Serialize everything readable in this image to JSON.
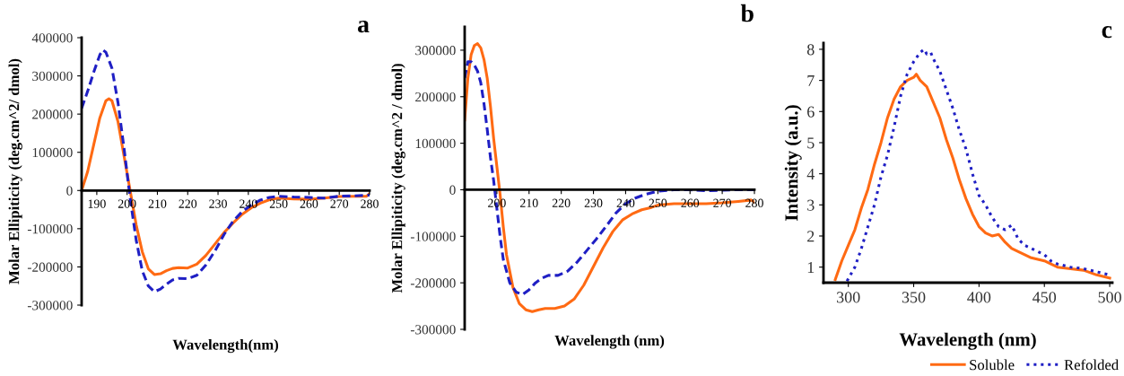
{
  "chart_data": [
    {
      "type": "line",
      "title": "a",
      "xlabel": "Wavelength(nm)",
      "ylabel": "Molar Ellipiticity (deg.cm^2/ dmol)",
      "xlim": [
        185,
        280
      ],
      "xticks": [
        190,
        200,
        210,
        220,
        230,
        240,
        250,
        260,
        270,
        280
      ],
      "ylim": [
        -300000,
        400000
      ],
      "yticks": [
        -300000,
        -200000,
        -100000,
        0,
        100000,
        200000,
        300000,
        400000
      ],
      "grid": false,
      "series": [
        {
          "color": "#ff6a13",
          "line_style": "solid",
          "x": [
            185,
            187,
            189,
            191,
            193,
            194,
            195,
            197,
            199,
            201,
            203,
            205,
            207,
            209,
            211,
            213,
            215,
            217,
            220,
            223,
            226,
            229,
            232,
            235,
            238,
            241,
            244,
            247,
            250,
            255,
            260,
            265,
            270,
            275,
            279,
            280
          ],
          "values": [
            0,
            50000,
            120000,
            190000,
            235000,
            240000,
            235000,
            180000,
            90000,
            0,
            -90000,
            -160000,
            -205000,
            -220000,
            -218000,
            -210000,
            -204000,
            -202000,
            -203000,
            -193000,
            -170000,
            -140000,
            -110000,
            -85000,
            -62000,
            -45000,
            -33000,
            -24000,
            -20000,
            -22000,
            -23000,
            -20000,
            -16000,
            -15000,
            -15000,
            -8000
          ]
        },
        {
          "color": "#1f1fc4",
          "line_style": "dashed",
          "x": [
            185,
            187,
            189,
            191,
            192,
            193,
            195,
            197,
            199,
            201,
            203,
            205,
            207,
            209,
            211,
            213,
            215,
            217,
            220,
            223,
            226,
            229,
            232,
            235,
            238,
            241,
            244,
            247,
            250,
            255,
            260,
            265,
            270,
            275,
            280
          ],
          "values": [
            215000,
            260000,
            310000,
            355000,
            368000,
            362000,
            320000,
            230000,
            110000,
            -20000,
            -130000,
            -210000,
            -250000,
            -265000,
            -258000,
            -245000,
            -234000,
            -230000,
            -231000,
            -222000,
            -195000,
            -158000,
            -115000,
            -80000,
            -55000,
            -38000,
            -25000,
            -18000,
            -15000,
            -17000,
            -18000,
            -20000,
            -15000,
            -14000,
            -12000
          ]
        }
      ]
    },
    {
      "type": "line",
      "title": "b",
      "xlabel": "Wavelength (nm)",
      "ylabel": "Molar Ellipiticity (deg.cm^2 / dmol)",
      "xlim": [
        190,
        280
      ],
      "xticks": [
        200,
        210,
        220,
        230,
        240,
        250,
        260,
        270,
        280
      ],
      "ylim": [
        -300000,
        350000
      ],
      "yticks": [
        -300000,
        -200000,
        -100000,
        0,
        100000,
        200000,
        300000
      ],
      "grid": false,
      "series": [
        {
          "color": "#ff6a13",
          "line_style": "solid",
          "x": [
            190,
            191,
            192,
            193,
            194,
            195,
            196,
            197,
            198,
            199,
            200,
            201,
            202,
            203,
            205,
            207,
            209,
            211,
            213,
            215,
            218,
            221,
            224,
            227,
            230,
            233,
            236,
            239,
            242,
            245,
            248,
            250,
            255,
            260,
            265,
            270,
            275,
            279,
            280
          ],
          "values": [
            150000,
            240000,
            290000,
            310000,
            314000,
            305000,
            280000,
            240000,
            180000,
            110000,
            50000,
            -10000,
            -80000,
            -140000,
            -210000,
            -245000,
            -258000,
            -262000,
            -258000,
            -255000,
            -255000,
            -250000,
            -235000,
            -205000,
            -165000,
            -125000,
            -90000,
            -65000,
            -52000,
            -43000,
            -38000,
            -33000,
            -30000,
            -30000,
            -30000,
            -28000,
            -25000,
            -22000,
            -27000
          ]
        },
        {
          "color": "#1f1fc4",
          "line_style": "dashed",
          "x": [
            190,
            191,
            192,
            193,
            194,
            195,
            196,
            197,
            198,
            199,
            200,
            201,
            202,
            204,
            206,
            208,
            210,
            212,
            214,
            216,
            219,
            222,
            225,
            228,
            231,
            234,
            237,
            240,
            243,
            246,
            250,
            255,
            260,
            265,
            270,
            275,
            280
          ],
          "values": [
            240000,
            275000,
            275000,
            268000,
            255000,
            230000,
            185000,
            130000,
            70000,
            20000,
            -40000,
            -100000,
            -150000,
            -200000,
            -220000,
            -225000,
            -215000,
            -200000,
            -190000,
            -184000,
            -184000,
            -175000,
            -155000,
            -130000,
            -105000,
            -78000,
            -50000,
            -30000,
            -18000,
            -10000,
            -3000,
            0,
            0,
            -2000,
            -1000,
            0,
            0
          ]
        }
      ]
    },
    {
      "type": "line",
      "title": "c",
      "xlabel": "Wavelength (nm)",
      "ylabel": "Intensity (a.u.)",
      "xlim": [
        281,
        502
      ],
      "xticks": [
        300,
        350,
        400,
        450,
        500
      ],
      "ylim": [
        0.5,
        8.2
      ],
      "yticks": [
        1,
        2,
        3,
        4,
        5,
        6,
        7,
        8
      ],
      "grid": false,
      "legend": "bottom",
      "series": [
        {
          "name": "Soluble",
          "color": "#ff6a13",
          "line_style": "solid",
          "x": [
            290,
            295,
            300,
            305,
            310,
            315,
            320,
            325,
            330,
            335,
            340,
            345,
            350,
            352,
            355,
            360,
            365,
            370,
            375,
            380,
            385,
            390,
            395,
            400,
            405,
            410,
            415,
            420,
            425,
            430,
            435,
            440,
            445,
            450,
            455,
            460,
            470,
            480,
            490,
            500
          ],
          "values": [
            0.6,
            1.2,
            1.7,
            2.2,
            2.9,
            3.5,
            4.3,
            5.0,
            5.8,
            6.4,
            6.8,
            7.0,
            7.1,
            7.2,
            7.0,
            6.8,
            6.3,
            5.8,
            5.1,
            4.5,
            3.8,
            3.2,
            2.7,
            2.3,
            2.1,
            2.0,
            2.05,
            1.8,
            1.6,
            1.5,
            1.4,
            1.3,
            1.25,
            1.2,
            1.1,
            1.0,
            0.95,
            0.9,
            0.75,
            0.65
          ]
        },
        {
          "name": "Refolded",
          "color": "#1f1fc4",
          "line_style": "dotted",
          "x": [
            299,
            305,
            310,
            315,
            320,
            325,
            330,
            335,
            340,
            345,
            350,
            355,
            358,
            360,
            363,
            365,
            370,
            375,
            380,
            385,
            390,
            395,
            400,
            405,
            410,
            415,
            420,
            425,
            430,
            435,
            440,
            445,
            450,
            455,
            460,
            470,
            480,
            490,
            500
          ],
          "values": [
            0.55,
            1.0,
            1.6,
            2.3,
            3.0,
            3.9,
            4.6,
            5.5,
            6.5,
            7.2,
            7.6,
            7.9,
            8.0,
            7.85,
            7.9,
            7.7,
            7.3,
            6.7,
            6.1,
            5.4,
            4.8,
            4.0,
            3.3,
            3.0,
            2.6,
            2.3,
            2.2,
            2.35,
            1.9,
            1.7,
            1.6,
            1.5,
            1.4,
            1.2,
            1.1,
            1.0,
            0.95,
            0.85,
            0.75
          ]
        }
      ]
    }
  ]
}
